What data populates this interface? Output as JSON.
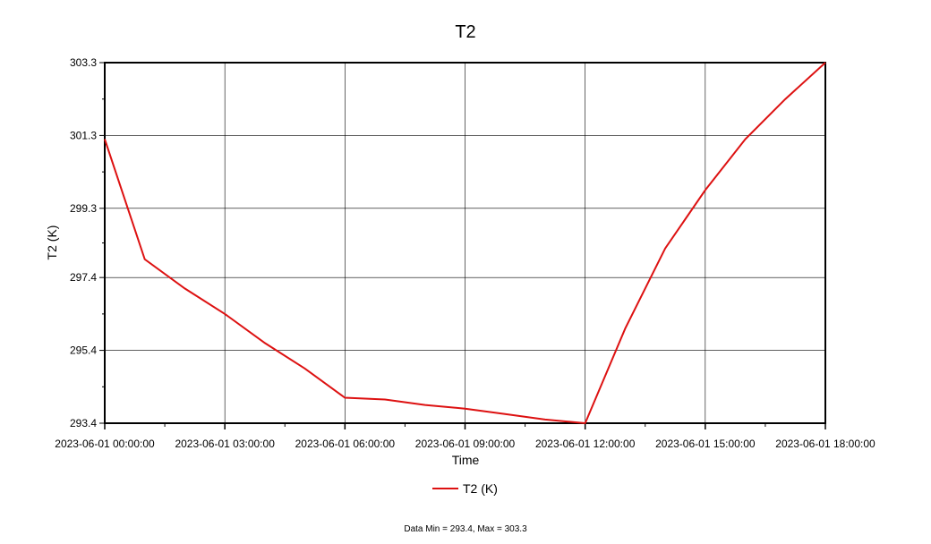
{
  "chart_data": {
    "type": "line",
    "title": "T2",
    "xlabel": "Time",
    "ylabel": "T2 (K)",
    "footer": "Data Min = 293.4, Max = 303.3",
    "legend_position": "bottom",
    "grid": true,
    "ylim": [
      293.4,
      303.3
    ],
    "xlim_hours": [
      0,
      18
    ],
    "y_ticks": [
      "293.4",
      "295.4",
      "297.4",
      "299.3",
      "301.3",
      "303.3"
    ],
    "x_ticks": [
      {
        "hour": 0,
        "label": "2023-06-01 00:00:00"
      },
      {
        "hour": 3,
        "label": "2023-06-01 03:00:00"
      },
      {
        "hour": 6,
        "label": "2023-06-01 06:00:00"
      },
      {
        "hour": 9,
        "label": "2023-06-01 09:00:00"
      },
      {
        "hour": 12,
        "label": "2023-06-01 12:00:00"
      },
      {
        "hour": 15,
        "label": "2023-06-01 15:00:00"
      },
      {
        "hour": 18,
        "label": "2023-06-01 18:00:00"
      }
    ],
    "series": [
      {
        "name": "T2 (K)",
        "color": "#dd1111",
        "points": [
          {
            "hour": 0,
            "value": 301.2
          },
          {
            "hour": 1,
            "value": 297.9
          },
          {
            "hour": 2,
            "value": 297.1
          },
          {
            "hour": 3,
            "value": 296.4
          },
          {
            "hour": 4,
            "value": 295.6
          },
          {
            "hour": 5,
            "value": 294.9
          },
          {
            "hour": 6,
            "value": 294.1
          },
          {
            "hour": 7,
            "value": 294.05
          },
          {
            "hour": 8,
            "value": 293.9
          },
          {
            "hour": 9,
            "value": 293.8
          },
          {
            "hour": 10,
            "value": 293.65
          },
          {
            "hour": 11,
            "value": 293.5
          },
          {
            "hour": 12,
            "value": 293.4
          },
          {
            "hour": 13,
            "value": 296.0
          },
          {
            "hour": 14,
            "value": 298.2
          },
          {
            "hour": 15,
            "value": 299.8
          },
          {
            "hour": 16,
            "value": 301.2
          },
          {
            "hour": 17,
            "value": 302.3
          },
          {
            "hour": 18,
            "value": 303.3
          }
        ]
      }
    ]
  }
}
